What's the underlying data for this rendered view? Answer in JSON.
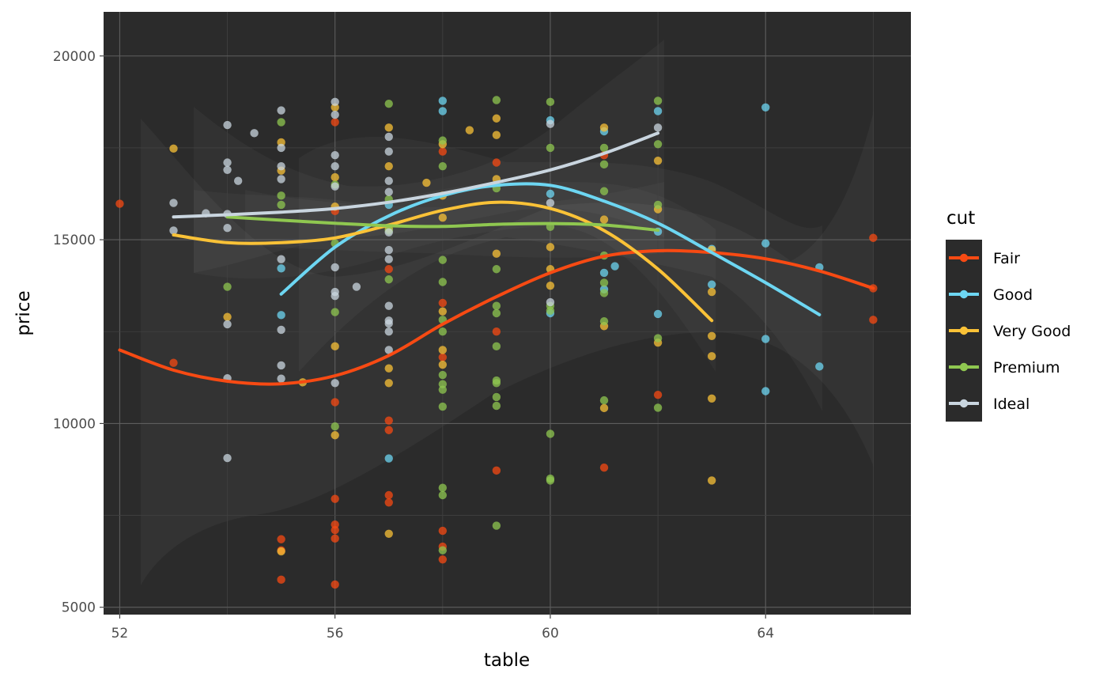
{
  "chart_data": {
    "type": "scatter",
    "xlabel": "table",
    "ylabel": "price",
    "xlim": [
      51.7,
      66.7
    ],
    "ylim": [
      4800,
      21200
    ],
    "x_ticks": [
      52,
      56,
      60,
      64
    ],
    "y_ticks": [
      5000,
      10000,
      15000,
      20000
    ],
    "x_tick_labels": [
      "52",
      "56",
      "60",
      "64"
    ],
    "y_tick_labels": [
      "5000",
      "10000",
      "15000",
      "20000"
    ],
    "grid": true,
    "panel_background": "#2b2b2b",
    "legend": {
      "title": "cut",
      "position": "right"
    },
    "series": [
      {
        "name": "Fair",
        "color": "#f74a13",
        "points": [
          [
            52,
            15980
          ],
          [
            53,
            11650
          ],
          [
            55,
            6850
          ],
          [
            55,
            6550
          ],
          [
            55,
            5750
          ],
          [
            56,
            18200
          ],
          [
            56,
            15780
          ],
          [
            56,
            10580
          ],
          [
            56,
            7950
          ],
          [
            56,
            7250
          ],
          [
            56,
            7100
          ],
          [
            56,
            6870
          ],
          [
            56,
            5620
          ],
          [
            57,
            14200
          ],
          [
            57,
            10080
          ],
          [
            57,
            9820
          ],
          [
            57,
            8050
          ],
          [
            57,
            7850
          ],
          [
            58,
            17400
          ],
          [
            58,
            13280
          ],
          [
            58,
            11800
          ],
          [
            58,
            7080
          ],
          [
            58,
            6650
          ],
          [
            58,
            6300
          ],
          [
            59,
            17100
          ],
          [
            59,
            12500
          ],
          [
            59,
            8720
          ],
          [
            61,
            17300
          ],
          [
            61,
            8800
          ],
          [
            62,
            10780
          ],
          [
            66,
            15050
          ],
          [
            66,
            13680
          ],
          [
            66,
            12820
          ]
        ],
        "smooth": [
          [
            52,
            12000
          ],
          [
            53,
            11450
          ],
          [
            54,
            11150
          ],
          [
            55,
            11080
          ],
          [
            56,
            11300
          ],
          [
            57,
            11850
          ],
          [
            58,
            12700
          ],
          [
            59,
            13450
          ],
          [
            60,
            14100
          ],
          [
            61,
            14550
          ],
          [
            62,
            14700
          ],
          [
            63,
            14650
          ],
          [
            64,
            14480
          ],
          [
            65,
            14150
          ],
          [
            66,
            13680
          ]
        ]
      },
      {
        "name": "Good",
        "color": "#6dd6f2",
        "points": [
          [
            55,
            14220
          ],
          [
            55,
            12950
          ],
          [
            57,
            9050
          ],
          [
            57,
            15950
          ],
          [
            58,
            18780
          ],
          [
            58,
            18500
          ],
          [
            60,
            18250
          ],
          [
            60,
            16250
          ],
          [
            60,
            13000
          ],
          [
            61,
            17950
          ],
          [
            61,
            14100
          ],
          [
            61,
            13650
          ],
          [
            61.2,
            14280
          ],
          [
            62,
            18500
          ],
          [
            62,
            15220
          ],
          [
            62,
            12980
          ],
          [
            63,
            13780
          ],
          [
            63,
            14750
          ],
          [
            64,
            18600
          ],
          [
            64,
            14900
          ],
          [
            64,
            12300
          ],
          [
            64,
            10880
          ],
          [
            65,
            14250
          ],
          [
            65,
            11550
          ]
        ],
        "smooth": [
          [
            55,
            13520
          ],
          [
            56,
            14800
          ],
          [
            57,
            15650
          ],
          [
            58,
            16200
          ],
          [
            59,
            16480
          ],
          [
            60,
            16480
          ],
          [
            61,
            16050
          ],
          [
            62,
            15450
          ],
          [
            63,
            14650
          ],
          [
            64,
            13830
          ],
          [
            65,
            12960
          ]
        ]
      },
      {
        "name": "Very Good",
        "color": "#fac237",
        "points": [
          [
            53,
            17480
          ],
          [
            54,
            12900
          ],
          [
            55,
            17650
          ],
          [
            55,
            16880
          ],
          [
            55,
            6520
          ],
          [
            55.4,
            11120
          ],
          [
            56,
            18600
          ],
          [
            56,
            16700
          ],
          [
            56,
            15900
          ],
          [
            56,
            12100
          ],
          [
            56,
            9680
          ],
          [
            57,
            18050
          ],
          [
            57,
            17000
          ],
          [
            57,
            15300
          ],
          [
            57,
            11500
          ],
          [
            57,
            11100
          ],
          [
            57,
            7000
          ],
          [
            57.7,
            16550
          ],
          [
            58,
            17600
          ],
          [
            58,
            16200
          ],
          [
            58,
            15600
          ],
          [
            58,
            13050
          ],
          [
            58,
            12000
          ],
          [
            58,
            11600
          ],
          [
            58.5,
            17980
          ],
          [
            59,
            18300
          ],
          [
            59,
            17850
          ],
          [
            59,
            16650
          ],
          [
            59,
            14620
          ],
          [
            60,
            14800
          ],
          [
            60,
            14200
          ],
          [
            60,
            13750
          ],
          [
            61,
            18050
          ],
          [
            61,
            15550
          ],
          [
            61,
            12650
          ],
          [
            61,
            10420
          ],
          [
            62,
            17150
          ],
          [
            62,
            15830
          ],
          [
            62,
            12200
          ],
          [
            63,
            14720
          ],
          [
            63,
            13580
          ],
          [
            63,
            12380
          ],
          [
            63,
            11830
          ],
          [
            63,
            10680
          ],
          [
            63,
            8450
          ]
        ],
        "smooth": [
          [
            53,
            15130
          ],
          [
            54,
            14920
          ],
          [
            55,
            14920
          ],
          [
            56,
            15050
          ],
          [
            57,
            15400
          ],
          [
            58,
            15800
          ],
          [
            59,
            16020
          ],
          [
            60,
            15850
          ],
          [
            61,
            15250
          ],
          [
            62,
            14200
          ],
          [
            63,
            12800
          ]
        ]
      },
      {
        "name": "Premium",
        "color": "#8fc750",
        "points": [
          [
            54,
            13720
          ],
          [
            55,
            18200
          ],
          [
            55,
            16200
          ],
          [
            55,
            15950
          ],
          [
            56,
            16500
          ],
          [
            56,
            14900
          ],
          [
            56,
            13030
          ],
          [
            56,
            9920
          ],
          [
            57,
            18700
          ],
          [
            57,
            16100
          ],
          [
            57,
            15250
          ],
          [
            57,
            13920
          ],
          [
            58,
            17700
          ],
          [
            58,
            17000
          ],
          [
            58,
            14450
          ],
          [
            58,
            13850
          ],
          [
            58,
            12820
          ],
          [
            58,
            12500
          ],
          [
            58,
            11320
          ],
          [
            58,
            11070
          ],
          [
            58,
            10920
          ],
          [
            58,
            10460
          ],
          [
            58,
            8250
          ],
          [
            58,
            8050
          ],
          [
            58,
            6550
          ],
          [
            59,
            18800
          ],
          [
            59,
            16400
          ],
          [
            59,
            14200
          ],
          [
            59,
            13200
          ],
          [
            59,
            13000
          ],
          [
            59,
            12100
          ],
          [
            59,
            11170
          ],
          [
            59,
            11100
          ],
          [
            59,
            10720
          ],
          [
            59,
            10480
          ],
          [
            59,
            7220
          ],
          [
            60,
            18750
          ],
          [
            60,
            17500
          ],
          [
            60,
            15350
          ],
          [
            60,
            13200
          ],
          [
            60,
            13070
          ],
          [
            60,
            9720
          ],
          [
            60,
            8500
          ],
          [
            60,
            8450
          ],
          [
            61,
            17500
          ],
          [
            61,
            17050
          ],
          [
            61,
            16320
          ],
          [
            61,
            14570
          ],
          [
            61,
            13830
          ],
          [
            61,
            13550
          ],
          [
            61,
            12780
          ],
          [
            61,
            10630
          ],
          [
            62,
            18780
          ],
          [
            62,
            17600
          ],
          [
            62,
            15950
          ],
          [
            62,
            12320
          ],
          [
            62,
            10430
          ]
        ],
        "smooth": [
          [
            54,
            15620
          ],
          [
            55,
            15530
          ],
          [
            56,
            15450
          ],
          [
            57,
            15380
          ],
          [
            58,
            15360
          ],
          [
            59,
            15420
          ],
          [
            60,
            15440
          ],
          [
            61,
            15400
          ],
          [
            62,
            15260
          ]
        ]
      },
      {
        "name": "Ideal",
        "color": "#c9d5df",
        "points": [
          [
            53,
            16000
          ],
          [
            53,
            15250
          ],
          [
            53.6,
            15720
          ],
          [
            54,
            18120
          ],
          [
            54,
            17100
          ],
          [
            54,
            16900
          ],
          [
            54,
            15700
          ],
          [
            54,
            15320
          ],
          [
            54,
            12700
          ],
          [
            54,
            11230
          ],
          [
            54,
            9060
          ],
          [
            54.2,
            16600
          ],
          [
            54.5,
            17900
          ],
          [
            55,
            18520
          ],
          [
            55,
            17500
          ],
          [
            55,
            17000
          ],
          [
            55,
            16650
          ],
          [
            55,
            14470
          ],
          [
            55,
            12550
          ],
          [
            55,
            11580
          ],
          [
            55,
            11220
          ],
          [
            56,
            18750
          ],
          [
            56,
            18400
          ],
          [
            56,
            17300
          ],
          [
            56,
            17000
          ],
          [
            56,
            16450
          ],
          [
            56,
            14250
          ],
          [
            56,
            13580
          ],
          [
            56,
            13470
          ],
          [
            56,
            11100
          ],
          [
            56.4,
            13720
          ],
          [
            57,
            17800
          ],
          [
            57,
            17400
          ],
          [
            57,
            16600
          ],
          [
            57,
            16300
          ],
          [
            57,
            15200
          ],
          [
            57,
            14720
          ],
          [
            57,
            14470
          ],
          [
            57,
            13200
          ],
          [
            57,
            12800
          ],
          [
            57,
            12720
          ],
          [
            57,
            12500
          ],
          [
            57,
            12000
          ],
          [
            60,
            18150
          ],
          [
            60,
            16000
          ],
          [
            60,
            13300
          ],
          [
            62,
            18050
          ]
        ],
        "smooth": [
          [
            53,
            15620
          ],
          [
            54,
            15680
          ],
          [
            55,
            15750
          ],
          [
            56,
            15850
          ],
          [
            57,
            16020
          ],
          [
            58,
            16260
          ],
          [
            59,
            16560
          ],
          [
            60,
            16900
          ],
          [
            61,
            17350
          ],
          [
            62,
            17900
          ]
        ]
      }
    ]
  }
}
